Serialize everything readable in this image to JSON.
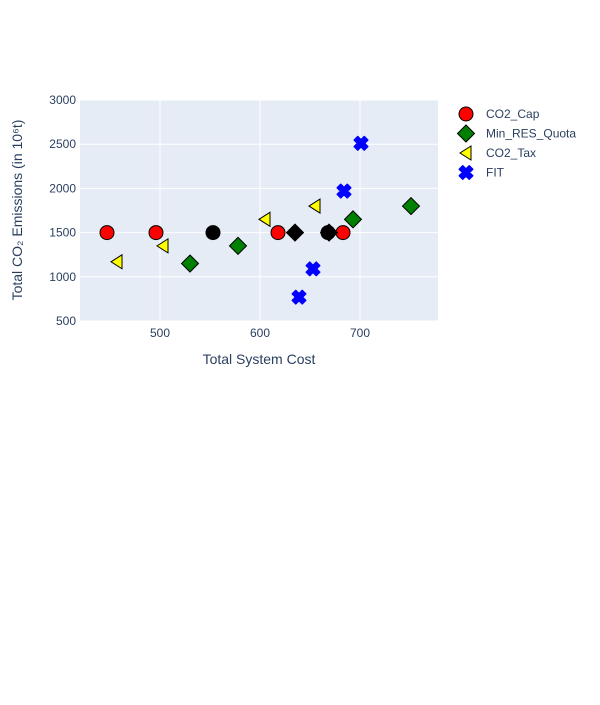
{
  "chart_data": {
    "type": "scatter",
    "title": "",
    "xlabel": "Total System Cost",
    "ylabel": "Total CO₂ Emissions (in 10⁶t)",
    "xlim": [
      420,
      778
    ],
    "ylim": [
      500,
      3000
    ],
    "x_ticks": [
      500,
      600,
      700
    ],
    "y_ticks": [
      500,
      1000,
      1500,
      2000,
      2500,
      3000
    ],
    "x_tick_labels": [
      "500",
      "600",
      "700"
    ],
    "y_tick_labels": [
      "500",
      "1000",
      "1500",
      "2000",
      "2500",
      "3000"
    ],
    "grid": true,
    "plot_background": "#e5ecf6",
    "legend_position": "top-right",
    "series": [
      {
        "name": "CO2_Cap",
        "marker": "circle",
        "color": "#ff0000",
        "points": [
          {
            "x": 447,
            "y": 1500
          },
          {
            "x": 496,
            "y": 1500
          },
          {
            "x": 618,
            "y": 1500
          },
          {
            "x": 683,
            "y": 1500
          }
        ]
      },
      {
        "name": "Min_RES_Quota",
        "marker": "diamond",
        "color": "#008000",
        "points": [
          {
            "x": 530,
            "y": 1150
          },
          {
            "x": 578,
            "y": 1350
          },
          {
            "x": 693,
            "y": 1650
          },
          {
            "x": 751,
            "y": 1800
          }
        ]
      },
      {
        "name": "CO2_Tax",
        "marker": "triangle-left",
        "color": "#ffff00",
        "points": [
          {
            "x": 457,
            "y": 1170
          },
          {
            "x": 503,
            "y": 1350
          },
          {
            "x": 605,
            "y": 1650
          },
          {
            "x": 655,
            "y": 1800
          }
        ]
      },
      {
        "name": "FIT",
        "marker": "x",
        "color": "#0000ff",
        "points": [
          {
            "x": 639,
            "y": 770
          },
          {
            "x": 653,
            "y": 1090
          },
          {
            "x": 684,
            "y": 1970
          },
          {
            "x": 701,
            "y": 2510
          }
        ]
      }
    ],
    "highlighted_points": {
      "color": "#000000",
      "points": [
        {
          "x": 553,
          "y": 1500,
          "marker": "circle"
        },
        {
          "x": 635,
          "y": 1500,
          "marker": "diamond"
        },
        {
          "x": 668,
          "y": 1500,
          "marker": "circle"
        },
        {
          "x": 669,
          "y": 1500,
          "marker": "diamond"
        }
      ]
    }
  }
}
